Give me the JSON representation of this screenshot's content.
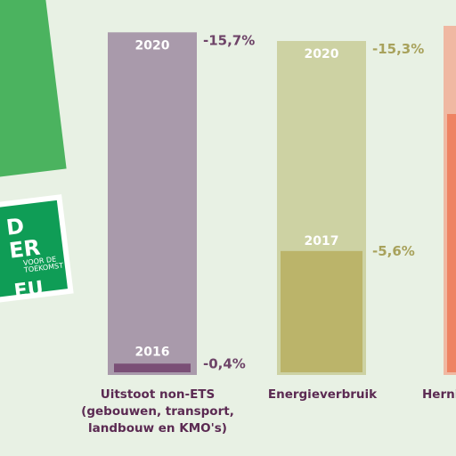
{
  "badge": {
    "lines": [
      "D",
      "ER",
      "VOOR DE",
      "TOEKOMST",
      "EU"
    ]
  },
  "chart_data": {
    "type": "bar",
    "title": "",
    "ylim": [
      -16,
      0
    ],
    "groups": [
      {
        "category": "Uitstoot non-ETS\n(gebouwen, transport,\nlandbouw en KMO's)",
        "color_target": "#a99aab",
        "color_actual": "#7a4f76",
        "color_text": "#6e4468",
        "target": {
          "year": "2020",
          "value": -15.7,
          "label": "-15,7%"
        },
        "actual": {
          "year": "2016",
          "value": -0.4,
          "label": "-0,4%"
        }
      },
      {
        "category": "Energieverbruik",
        "color_target": "#cdd2a3",
        "color_actual": "#bbb46a",
        "color_text": "#a8a25c",
        "target": {
          "year": "2020",
          "value": -15.3,
          "label": "-15,3%"
        },
        "actual": {
          "year": "2017",
          "value": -5.6,
          "label": "-5,6%"
        }
      },
      {
        "category": "Hernie",
        "color_target": "#f0b8a2",
        "color_actual": "#ee8363",
        "color_text": "#e0705a",
        "target": {
          "year": "",
          "value": null,
          "label": ""
        },
        "actual": {
          "year": "",
          "value": null,
          "label": ""
        }
      }
    ]
  }
}
